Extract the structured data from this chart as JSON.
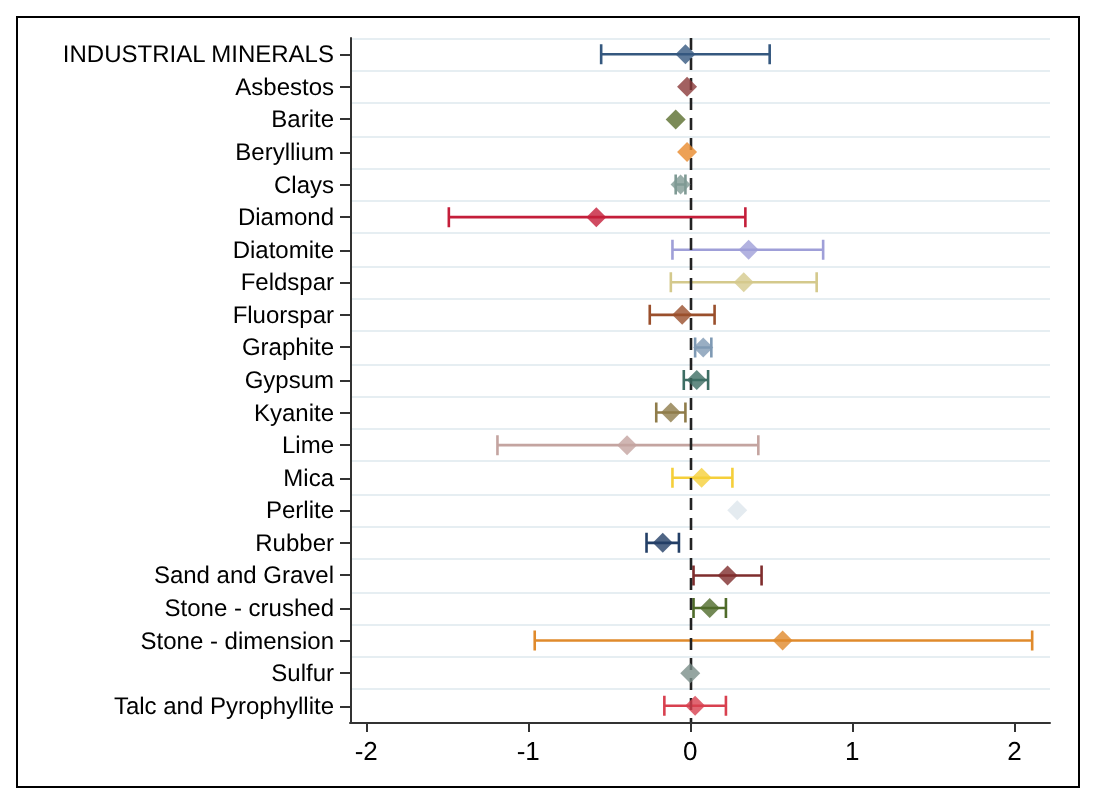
{
  "chart_data": {
    "type": "scatter",
    "orientation": "horizontal",
    "marker": "diamond",
    "categories": [
      "INDUSTRIAL MINERALS",
      "Asbestos",
      "Barite",
      "Beryllium",
      "Clays",
      "Diamond",
      "Diatomite",
      "Feldspar",
      "Fluorspar",
      "Graphite",
      "Gypsum",
      "Kyanite",
      "Lime",
      "Mica",
      "Perlite",
      "Rubber",
      "Sand and Gravel",
      "Stone - crushed",
      "Stone - dimension",
      "Sulfur",
      "Talc and Pyrophyllite"
    ],
    "values": [
      -0.03,
      -0.02,
      -0.09,
      -0.02,
      -0.06,
      -0.58,
      0.36,
      0.33,
      -0.05,
      0.08,
      0.04,
      -0.12,
      -0.39,
      0.07,
      0.29,
      -0.17,
      0.23,
      0.12,
      0.57,
      0.0,
      0.03
    ],
    "errors": [
      [
        -0.55,
        0.49
      ],
      null,
      null,
      null,
      [
        -0.09,
        -0.03
      ],
      [
        -1.49,
        0.34
      ],
      [
        -0.11,
        0.82
      ],
      [
        -0.12,
        0.78
      ],
      [
        -0.25,
        0.15
      ],
      [
        0.03,
        0.13
      ],
      [
        -0.04,
        0.11
      ],
      [
        -0.21,
        -0.03
      ],
      [
        -1.19,
        0.42
      ],
      [
        -0.11,
        0.26
      ],
      null,
      [
        -0.27,
        -0.07
      ],
      [
        0.02,
        0.44
      ],
      [
        0.02,
        0.22
      ],
      [
        -0.96,
        2.11
      ],
      null,
      [
        -0.16,
        0.22
      ]
    ],
    "colors": [
      "#35587f",
      "#8b3a3a",
      "#5a6e2d",
      "#e8892c",
      "#7f9a94",
      "#c41e3a",
      "#9f9fd8",
      "#d4c98c",
      "#9a4f2c",
      "#7f9ab4",
      "#3d6e64",
      "#8f7c4a",
      "#c4a4a0",
      "#f5cf3a",
      "#dde6ec",
      "#233f66",
      "#7f2d2d",
      "#4f6b2a",
      "#e08a2c",
      "#7b8f8a",
      "#d8404f"
    ],
    "xlim": [
      -2.1,
      2.22
    ],
    "xticks": [
      -2,
      -1,
      0,
      1,
      2
    ],
    "ref_lines": [
      {
        "axis": "x",
        "value": 0,
        "color": "#222222",
        "line_style": "dashed"
      }
    ],
    "grid": "y"
  }
}
